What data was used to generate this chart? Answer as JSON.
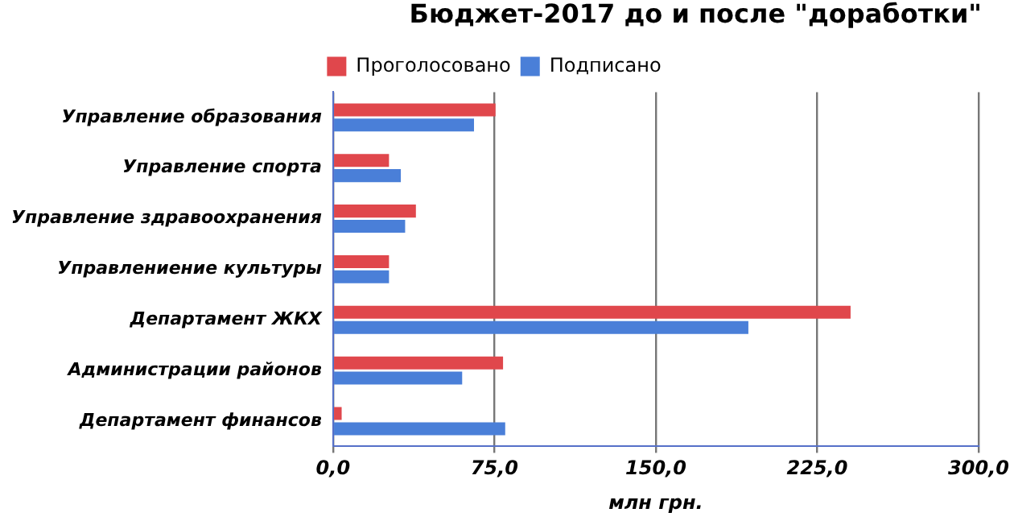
{
  "chart_data": {
    "type": "bar",
    "orientation": "horizontal",
    "title": "Бюджет-2017 до и после \"доработки\"",
    "xlabel": "млн грн.",
    "categories": [
      "Управление образования",
      "Управление спорта",
      "Управление здравоохранения",
      "Управлениение культуры",
      "Департамент ЖКХ",
      "Администрации районов",
      "Департамент финансов"
    ],
    "series": [
      {
        "name": "Проголосовано",
        "color": "#e0474c",
        "values": [
          75.5,
          26,
          38.5,
          26,
          240.5,
          79,
          4
        ]
      },
      {
        "name": "Подписано",
        "color": "#4a7fd8",
        "values": [
          65.5,
          31.5,
          33.5,
          26,
          193,
          60,
          80
        ]
      }
    ],
    "xlim": [
      0,
      300
    ],
    "xticks": [
      {
        "value": 0,
        "label": "0,0"
      },
      {
        "value": 75,
        "label": "75,0"
      },
      {
        "value": 150,
        "label": "150,0"
      },
      {
        "value": 225,
        "label": "225,0"
      },
      {
        "value": 300,
        "label": "300,0"
      }
    ],
    "grid": "x",
    "legend": "top"
  }
}
